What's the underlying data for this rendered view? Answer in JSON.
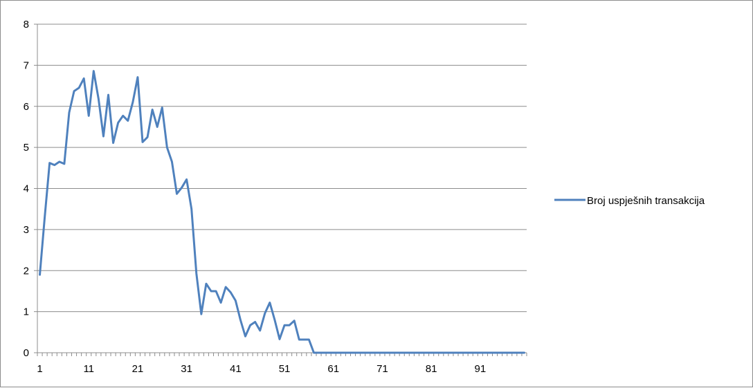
{
  "chart_data": {
    "type": "line",
    "title": "",
    "xlabel": "",
    "ylabel": "",
    "ylim": [
      0,
      8
    ],
    "yticks": [
      "0",
      "1",
      "2",
      "3",
      "4",
      "5",
      "6",
      "7",
      "8"
    ],
    "xlim": [
      1,
      100
    ],
    "xtick_labels": [
      "1",
      "11",
      "21",
      "31",
      "41",
      "51",
      "61",
      "71",
      "81",
      "91"
    ],
    "grid": "horizontal",
    "legend_position": "right",
    "colors": {
      "series": "#4f81bd",
      "grid": "#8c8c8c",
      "axis": "#8c8c8c"
    },
    "series": [
      {
        "name": "Broj uspješnih transakcija",
        "x": [
          1,
          2,
          3,
          4,
          5,
          6,
          7,
          8,
          9,
          10,
          11,
          12,
          13,
          14,
          15,
          16,
          17,
          18,
          19,
          20,
          21,
          22,
          23,
          24,
          25,
          26,
          27,
          28,
          29,
          30,
          31,
          32,
          33,
          34,
          35,
          36,
          37,
          38,
          39,
          40,
          41,
          42,
          43,
          44,
          45,
          46,
          47,
          48,
          49,
          50,
          51,
          52,
          53,
          54,
          55,
          56,
          57,
          58,
          59,
          60,
          61,
          62,
          63,
          64,
          65,
          66,
          67,
          68,
          69,
          70,
          71,
          72,
          73,
          74,
          75,
          76,
          77,
          78,
          79,
          80,
          81,
          82,
          83,
          84,
          85,
          86,
          87,
          88,
          89,
          90,
          91,
          92,
          93,
          94,
          95,
          96,
          97,
          98,
          99,
          100
        ],
        "values": [
          1.9,
          3.3,
          4.62,
          4.57,
          4.65,
          4.6,
          5.85,
          6.37,
          6.45,
          6.68,
          5.77,
          6.86,
          6.18,
          5.27,
          6.28,
          5.11,
          5.6,
          5.77,
          5.65,
          6.1,
          6.71,
          5.13,
          5.25,
          5.92,
          5.5,
          5.97,
          5.0,
          4.65,
          3.87,
          4.02,
          4.22,
          3.5,
          1.93,
          0.94,
          1.68,
          1.5,
          1.5,
          1.22,
          1.6,
          1.47,
          1.27,
          0.8,
          0.4,
          0.67,
          0.75,
          0.54,
          0.96,
          1.22,
          0.8,
          0.33,
          0.67,
          0.67,
          0.78,
          0.32,
          0.32,
          0.32,
          0.0,
          0,
          0,
          0,
          0,
          0,
          0,
          0,
          0,
          0,
          0,
          0,
          0,
          0,
          0,
          0,
          0,
          0,
          0,
          0,
          0,
          0,
          0,
          0,
          0,
          0,
          0,
          0,
          0,
          0,
          0,
          0,
          0,
          0,
          0,
          0,
          0,
          0,
          0,
          0,
          0,
          0,
          0,
          0
        ]
      }
    ]
  }
}
